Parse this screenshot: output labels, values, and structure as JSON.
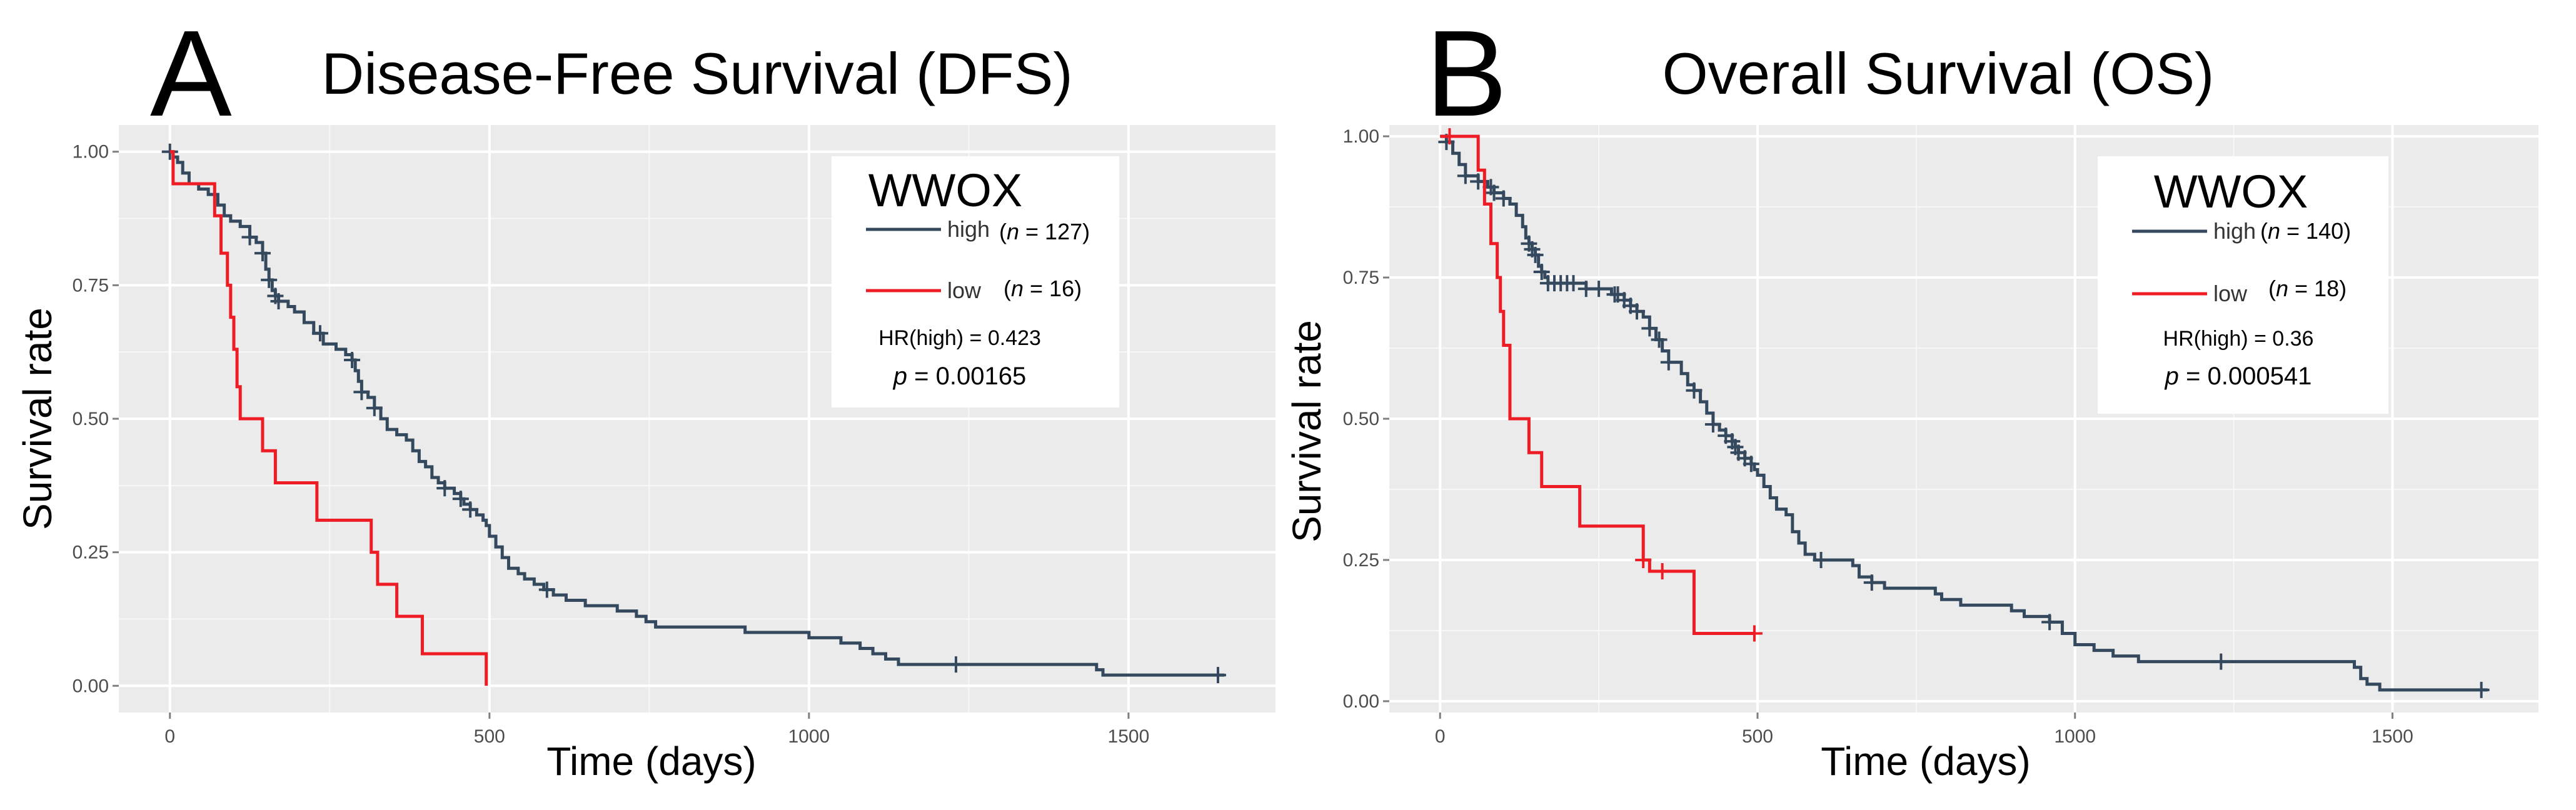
{
  "chart_data": [
    {
      "panel_letter": "A",
      "type": "line",
      "chart_kind": "kaplan-meier",
      "title": "Disease-Free Survival (DFS)",
      "xlabel": "Time (days)",
      "ylabel": "Survival rate",
      "xlim": [
        -80,
        1730
      ],
      "ylim": [
        -0.05,
        1.05
      ],
      "x_ticks": [
        0,
        500,
        1000,
        1500
      ],
      "x_tick_labels": [
        "0",
        "500",
        "1000",
        "1500"
      ],
      "y_ticks": [
        0,
        0.25,
        0.5,
        0.75,
        1
      ],
      "y_tick_labels": [
        "0.00",
        "0.25",
        "0.50",
        "0.75",
        "1.00"
      ],
      "grid": true,
      "legend": {
        "title": "WWOX",
        "position": "top-right",
        "entries": [
          {
            "label": "high",
            "n_text": "(n = 127)",
            "n_italic": "n",
            "n_rest": " = 127)"
          },
          {
            "label": "low",
            "n_text": "(n = 16)",
            "n_italic": "n",
            "n_rest": " = 16)"
          }
        ],
        "hr_text": "HR(high) = 0.423",
        "p_italic": "p",
        "p_rest": " = 0.00165"
      },
      "series": [
        {
          "name": "high",
          "color": "#34495e",
          "points": [
            [
              0,
              1.0
            ],
            [
              5,
              0.99
            ],
            [
              12,
              0.98
            ],
            [
              20,
              0.96
            ],
            [
              30,
              0.94
            ],
            [
              45,
              0.93
            ],
            [
              60,
              0.92
            ],
            [
              75,
              0.9
            ],
            [
              85,
              0.88
            ],
            [
              95,
              0.87
            ],
            [
              110,
              0.86
            ],
            [
              125,
              0.84
            ],
            [
              135,
              0.83
            ],
            [
              145,
              0.81
            ],
            [
              150,
              0.78
            ],
            [
              155,
              0.76
            ],
            [
              160,
              0.74
            ],
            [
              165,
              0.73
            ],
            [
              170,
              0.72
            ],
            [
              185,
              0.71
            ],
            [
              195,
              0.7
            ],
            [
              210,
              0.68
            ],
            [
              225,
              0.66
            ],
            [
              240,
              0.64
            ],
            [
              260,
              0.63
            ],
            [
              275,
              0.62
            ],
            [
              285,
              0.61
            ],
            [
              290,
              0.59
            ],
            [
              295,
              0.57
            ],
            [
              300,
              0.55
            ],
            [
              310,
              0.54
            ],
            [
              320,
              0.52
            ],
            [
              330,
              0.5
            ],
            [
              340,
              0.48
            ],
            [
              355,
              0.47
            ],
            [
              370,
              0.46
            ],
            [
              380,
              0.44
            ],
            [
              390,
              0.42
            ],
            [
              400,
              0.41
            ],
            [
              410,
              0.39
            ],
            [
              420,
              0.38
            ],
            [
              430,
              0.37
            ],
            [
              445,
              0.36
            ],
            [
              455,
              0.35
            ],
            [
              460,
              0.34
            ],
            [
              470,
              0.33
            ],
            [
              480,
              0.32
            ],
            [
              490,
              0.31
            ],
            [
              495,
              0.3
            ],
            [
              500,
              0.28
            ],
            [
              510,
              0.26
            ],
            [
              520,
              0.24
            ],
            [
              530,
              0.22
            ],
            [
              545,
              0.21
            ],
            [
              555,
              0.2
            ],
            [
              570,
              0.19
            ],
            [
              585,
              0.18
            ],
            [
              600,
              0.17
            ],
            [
              620,
              0.16
            ],
            [
              650,
              0.15
            ],
            [
              700,
              0.14
            ],
            [
              730,
              0.13
            ],
            [
              745,
              0.12
            ],
            [
              760,
              0.11
            ],
            [
              900,
              0.1
            ],
            [
              1000,
              0.09
            ],
            [
              1050,
              0.08
            ],
            [
              1080,
              0.07
            ],
            [
              1100,
              0.06
            ],
            [
              1120,
              0.05
            ],
            [
              1140,
              0.04
            ],
            [
              1450,
              0.03
            ],
            [
              1460,
              0.02
            ],
            [
              1650,
              0.02
            ]
          ],
          "censor_x": [
            0,
            125,
            145,
            155,
            165,
            170,
            235,
            285,
            300,
            320,
            430,
            455,
            470,
            590,
            1230,
            1640
          ]
        },
        {
          "name": "low",
          "color": "#ee1c25",
          "points": [
            [
              0,
              1.0
            ],
            [
              5,
              0.94
            ],
            [
              65,
              0.94
            ],
            [
              70,
              0.88
            ],
            [
              80,
              0.81
            ],
            [
              90,
              0.75
            ],
            [
              95,
              0.69
            ],
            [
              100,
              0.63
            ],
            [
              105,
              0.56
            ],
            [
              110,
              0.5
            ],
            [
              145,
              0.44
            ],
            [
              165,
              0.38
            ],
            [
              230,
              0.31
            ],
            [
              315,
              0.25
            ],
            [
              325,
              0.19
            ],
            [
              355,
              0.13
            ],
            [
              395,
              0.06
            ],
            [
              495,
              0.0
            ]
          ],
          "censor_x": []
        }
      ]
    },
    {
      "panel_letter": "B",
      "type": "line",
      "chart_kind": "kaplan-meier",
      "title": "Overall Survival (OS)",
      "xlabel": "Time (days)",
      "ylabel": "Survival rate",
      "xlim": [
        -80,
        1730
      ],
      "ylim": [
        -0.02,
        1.02
      ],
      "x_ticks": [
        0,
        500,
        1000,
        1500
      ],
      "x_tick_labels": [
        "0",
        "500",
        "1000",
        "1500"
      ],
      "y_ticks": [
        0,
        0.25,
        0.5,
        0.75,
        1
      ],
      "y_tick_labels": [
        "0.00",
        "0.25",
        "0.50",
        "0.75",
        "1.00"
      ],
      "grid": true,
      "legend": {
        "title": "WWOX",
        "position": "top-right",
        "entries": [
          {
            "label": "high",
            "n_text": "(n = 140)",
            "n_italic": "n",
            "n_rest": " = 140)"
          },
          {
            "label": "low",
            "n_text": "(n = 18)",
            "n_italic": "n",
            "n_rest": " = 18)"
          }
        ],
        "hr_text": "HR(high) = 0.36",
        "p_italic": "p",
        "p_rest": " = 0.000541"
      },
      "series": [
        {
          "name": "high",
          "color": "#34495e",
          "points": [
            [
              0,
              1.0
            ],
            [
              10,
              0.99
            ],
            [
              20,
              0.97
            ],
            [
              30,
              0.95
            ],
            [
              40,
              0.93
            ],
            [
              60,
              0.92
            ],
            [
              75,
              0.91
            ],
            [
              85,
              0.9
            ],
            [
              100,
              0.89
            ],
            [
              110,
              0.88
            ],
            [
              120,
              0.86
            ],
            [
              130,
              0.84
            ],
            [
              135,
              0.82
            ],
            [
              140,
              0.81
            ],
            [
              145,
              0.8
            ],
            [
              150,
              0.79
            ],
            [
              155,
              0.77
            ],
            [
              160,
              0.76
            ],
            [
              165,
              0.75
            ],
            [
              170,
              0.74
            ],
            [
              200,
              0.74
            ],
            [
              230,
              0.73
            ],
            [
              270,
              0.72
            ],
            [
              290,
              0.71
            ],
            [
              300,
              0.7
            ],
            [
              310,
              0.69
            ],
            [
              320,
              0.68
            ],
            [
              330,
              0.66
            ],
            [
              340,
              0.64
            ],
            [
              350,
              0.62
            ],
            [
              360,
              0.6
            ],
            [
              380,
              0.58
            ],
            [
              390,
              0.56
            ],
            [
              400,
              0.55
            ],
            [
              410,
              0.53
            ],
            [
              420,
              0.51
            ],
            [
              430,
              0.49
            ],
            [
              440,
              0.48
            ],
            [
              450,
              0.47
            ],
            [
              460,
              0.46
            ],
            [
              465,
              0.45
            ],
            [
              470,
              0.44
            ],
            [
              480,
              0.43
            ],
            [
              490,
              0.42
            ],
            [
              495,
              0.41
            ],
            [
              500,
              0.4
            ],
            [
              510,
              0.38
            ],
            [
              520,
              0.36
            ],
            [
              530,
              0.34
            ],
            [
              545,
              0.33
            ],
            [
              555,
              0.3
            ],
            [
              565,
              0.28
            ],
            [
              575,
              0.26
            ],
            [
              590,
              0.25
            ],
            [
              650,
              0.24
            ],
            [
              660,
              0.22
            ],
            [
              680,
              0.21
            ],
            [
              700,
              0.2
            ],
            [
              780,
              0.19
            ],
            [
              790,
              0.18
            ],
            [
              820,
              0.17
            ],
            [
              900,
              0.16
            ],
            [
              920,
              0.15
            ],
            [
              960,
              0.14
            ],
            [
              980,
              0.12
            ],
            [
              1000,
              0.1
            ],
            [
              1030,
              0.09
            ],
            [
              1060,
              0.08
            ],
            [
              1100,
              0.07
            ],
            [
              1440,
              0.06
            ],
            [
              1450,
              0.04
            ],
            [
              1460,
              0.03
            ],
            [
              1480,
              0.02
            ],
            [
              1650,
              0.02
            ]
          ],
          "censor_x": [
            10,
            40,
            60,
            80,
            85,
            100,
            140,
            145,
            150,
            160,
            170,
            180,
            190,
            200,
            210,
            230,
            250,
            275,
            280,
            290,
            300,
            310,
            330,
            345,
            360,
            400,
            430,
            450,
            460,
            465,
            470,
            480,
            490,
            600,
            680,
            960,
            1230,
            1640
          ]
        },
        {
          "name": "low",
          "color": "#ee1c25",
          "points": [
            [
              0,
              1.0
            ],
            [
              15,
              1.0
            ],
            [
              45,
              1.0
            ],
            [
              60,
              0.94
            ],
            [
              70,
              0.88
            ],
            [
              80,
              0.81
            ],
            [
              90,
              0.75
            ],
            [
              95,
              0.69
            ],
            [
              100,
              0.63
            ],
            [
              110,
              0.5
            ],
            [
              140,
              0.44
            ],
            [
              160,
              0.38
            ],
            [
              220,
              0.31
            ],
            [
              320,
              0.25
            ],
            [
              330,
              0.23
            ],
            [
              400,
              0.12
            ],
            [
              495,
              0.12
            ]
          ],
          "censor_x": [
            15,
            320,
            350,
            495
          ]
        }
      ]
    }
  ]
}
